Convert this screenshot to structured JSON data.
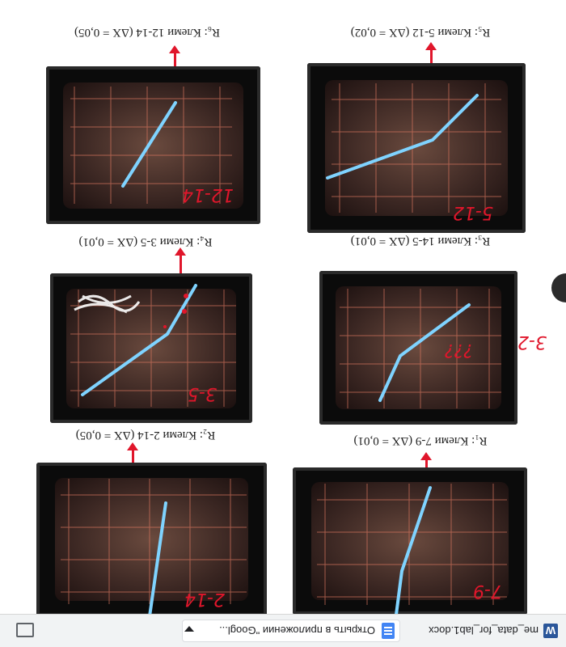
{
  "captions": {
    "r6": "R₆: Клеми 12-14 (ΔX = 0,05)",
    "r5": "R₅: Клеми 5-12 (ΔX = 0,02)",
    "r4": "R₄: Клеми 3-5 (ΔX = 0,01)",
    "r3": "R₃: Клеми 14-5 (ΔX = 0,01)",
    "r2": "R₂: Клеми 2-14 (ΔX = 0,05)",
    "r1": "R₁: Клеми 7-9 (ΔX = 0,01)"
  },
  "handwriting": {
    "p1": "12-14",
    "p2": "5-12",
    "p3": "3-5",
    "p4": "???",
    "p5": "3-2",
    "p6": "2-14",
    "p7": "7-9"
  },
  "download_bar": {
    "filename": "me_data_for_lab1.docx",
    "open_label": "Открыть в приложении \"Googl...",
    "file_icon_letter": "W"
  },
  "colors": {
    "trace": "#7fd3ff",
    "grid": "#d7755e",
    "annotation": "#e0162b"
  }
}
